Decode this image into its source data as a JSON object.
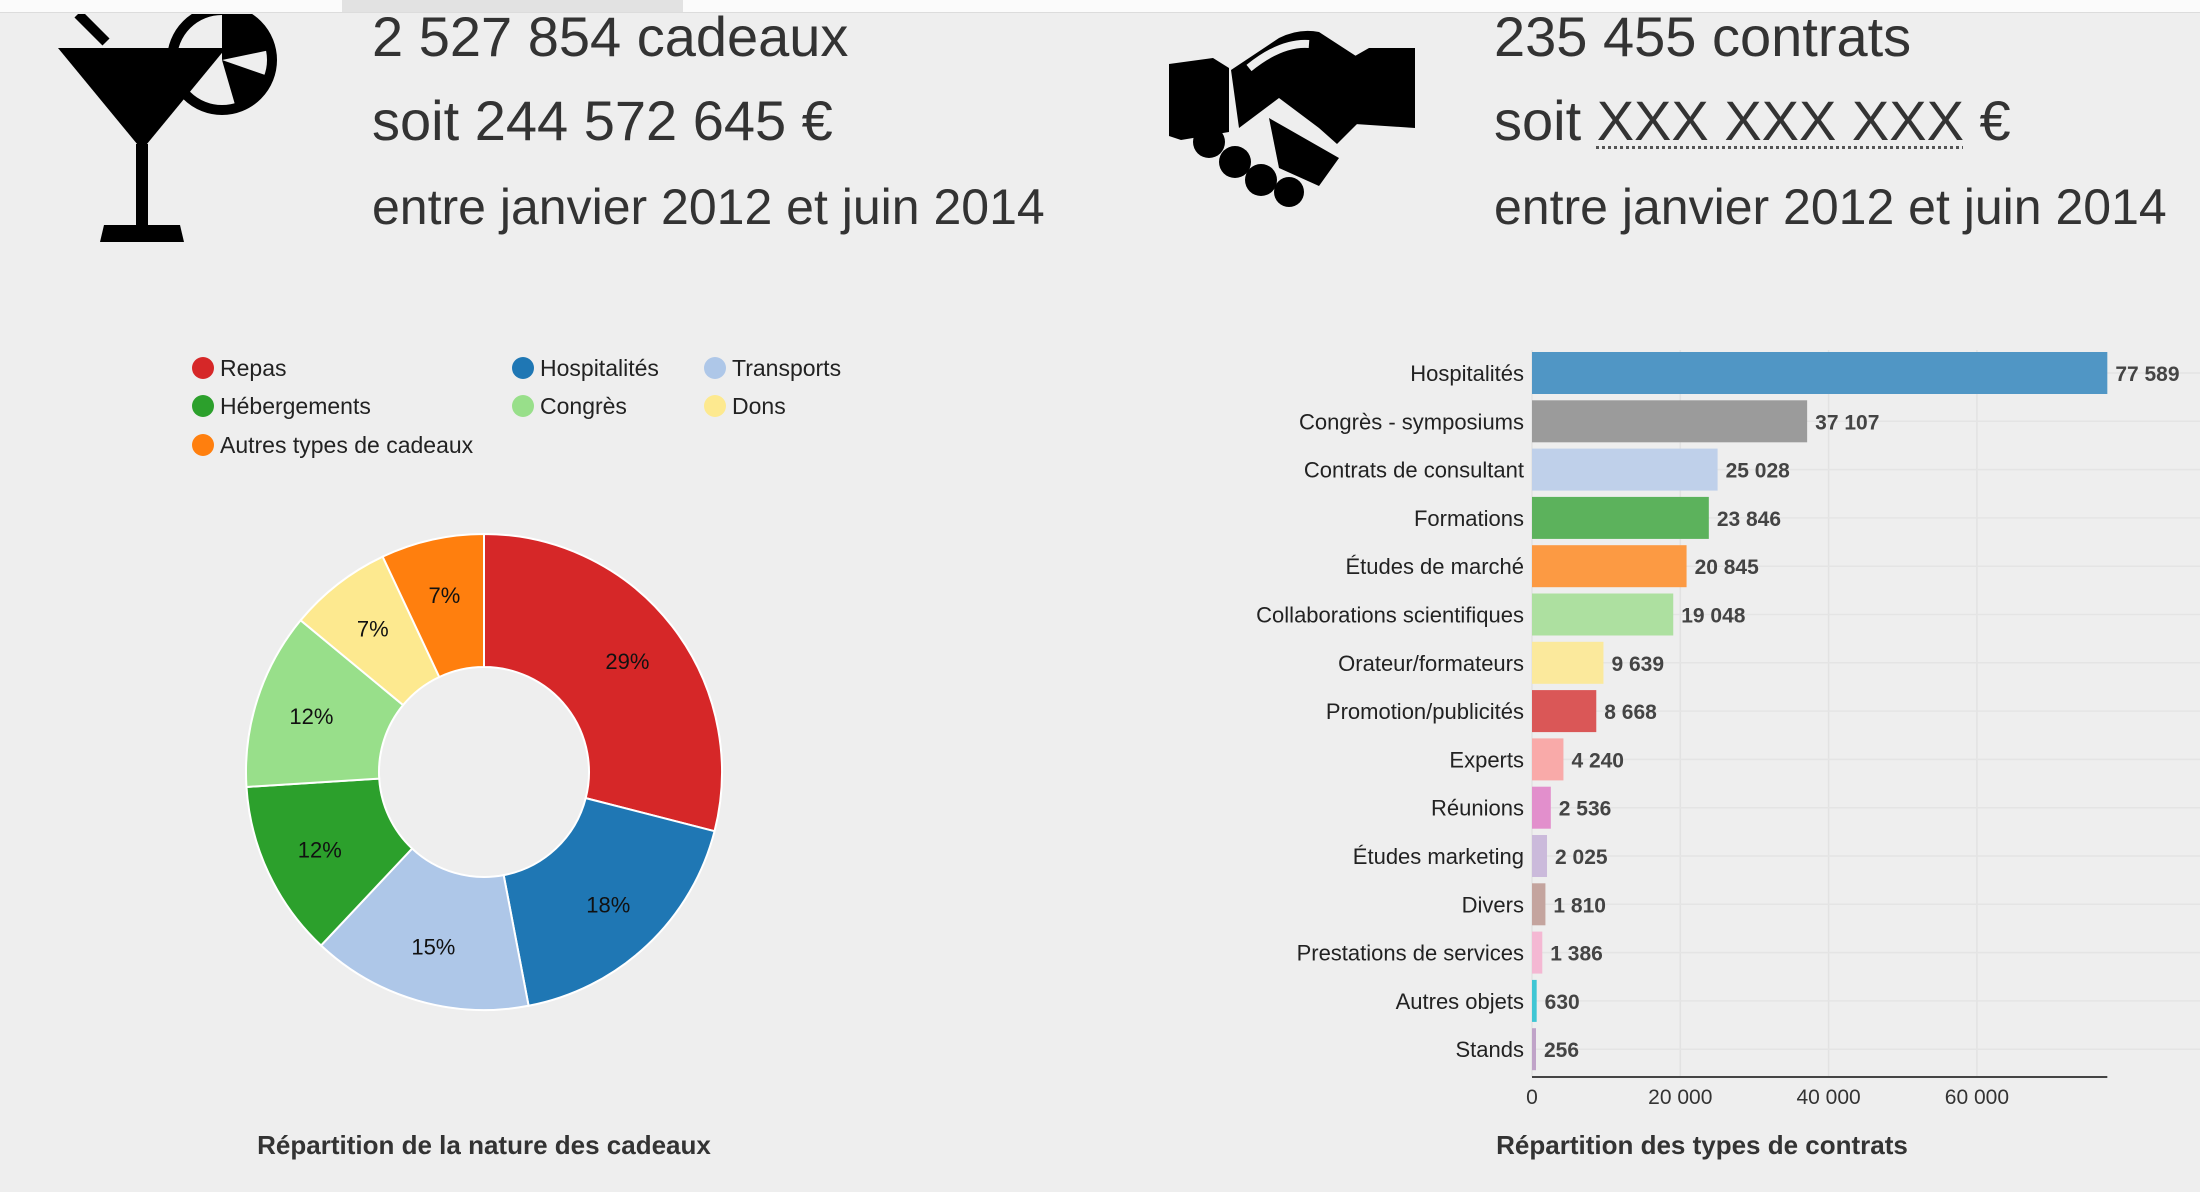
{
  "top_tabs": [
    "",
    ""
  ],
  "gifts": {
    "icon": "cocktail-icon",
    "count_line": "2 527 854 cadeaux",
    "amount_prefix": "soit ",
    "amount_value": "244 572 645 €",
    "period": "entre janvier 2012 et juin 2014"
  },
  "contracts": {
    "icon": "handshake-icon",
    "count_line": "235 455 contrats",
    "amount_prefix": "soit ",
    "amount_value": "XXX XXX XXX",
    "amount_suffix": " €",
    "period": "entre janvier 2012 et juin 2014"
  },
  "chart_data": [
    {
      "type": "pie",
      "variant": "donut",
      "title": "Répartition de la nature des cadeaux",
      "legend_position": "top-left",
      "categories": [
        "Repas",
        "Hospitalités",
        "Transports",
        "Hébergements",
        "Congrès",
        "Dons",
        "Autres types de cadeaux"
      ],
      "values": [
        29,
        18,
        15,
        12,
        12,
        7,
        7
      ],
      "labels": [
        "29%",
        "18%",
        "15%",
        "12%",
        "12%",
        "7%",
        "7%"
      ],
      "colors": [
        "#d62728",
        "#1f77b4",
        "#aec7e8",
        "#2ca02c",
        "#98df8a",
        "#fde98f",
        "#ff7f0e"
      ],
      "legend_order": [
        0,
        1,
        2,
        3,
        4,
        5,
        6
      ]
    },
    {
      "type": "bar",
      "orientation": "horizontal",
      "title": "Répartition des types de contrats",
      "categories": [
        "Hospitalités",
        "Congrès - symposiums",
        "Contrats de consultant",
        "Formations",
        "Études de marché",
        "Collaborations scientifiques",
        "Orateur/formateurs",
        "Promotion/publicités",
        "Experts",
        "Réunions",
        "Études marketing",
        "Divers",
        "Prestations de services",
        "Autres objets",
        "Stands"
      ],
      "values": [
        77589,
        37107,
        25028,
        23846,
        20845,
        19048,
        9639,
        8668,
        4240,
        2536,
        2025,
        1810,
        1386,
        630,
        256
      ],
      "value_labels": [
        "77 589",
        "37 107",
        "25 028",
        "23 846",
        "20 845",
        "19 048",
        "9 639",
        "8 668",
        "4 240",
        "2 536",
        "2 025",
        "1 810",
        "1 386",
        "630",
        "256"
      ],
      "colors": [
        "#5096c5",
        "#9b9b9b",
        "#bfd0ea",
        "#5cb25c",
        "#fc9a43",
        "#ade0a0",
        "#fbe99c",
        "#da5757",
        "#f9aaa9",
        "#e28fcc",
        "#cbbadb",
        "#c4a49e",
        "#f4b8d3",
        "#3fc6d4",
        "#c0a3c8"
      ],
      "xlim": [
        0,
        77589
      ],
      "xticks": [
        0,
        20000,
        40000,
        60000
      ],
      "xtick_labels": [
        "0",
        "20 000",
        "40 000",
        "60 000"
      ],
      "grid": true
    }
  ]
}
